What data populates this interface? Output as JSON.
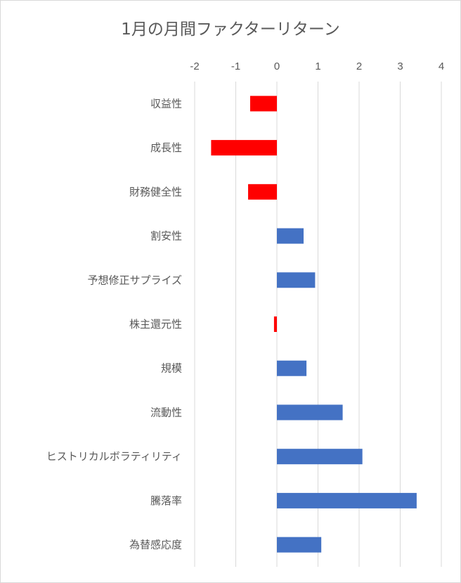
{
  "chart_data": {
    "type": "bar",
    "orientation": "horizontal",
    "title": "1月の月間ファクターリターン",
    "xlabel": "",
    "ylabel": "",
    "xlim": [
      -2,
      4
    ],
    "xticks": [
      "-2",
      "-1",
      "0",
      "1",
      "2",
      "3",
      "4"
    ],
    "x_axis_position": "top",
    "grid": true,
    "legend": "none",
    "categories": [
      "収益性",
      "成長性",
      "財務健全性",
      "割安性",
      "予想修正サプライズ",
      "株主還元性",
      "規模",
      "流動性",
      "ヒストリカルボラティリティ",
      "騰落率",
      "為替感応度"
    ],
    "values": [
      -0.65,
      -1.6,
      -0.7,
      0.65,
      0.93,
      -0.07,
      0.72,
      1.6,
      2.08,
      3.4,
      1.08
    ],
    "colors": {
      "positive": "#4472c4",
      "negative": "#ff0000",
      "grid": "#d9d9d9",
      "text": "#595959"
    }
  }
}
